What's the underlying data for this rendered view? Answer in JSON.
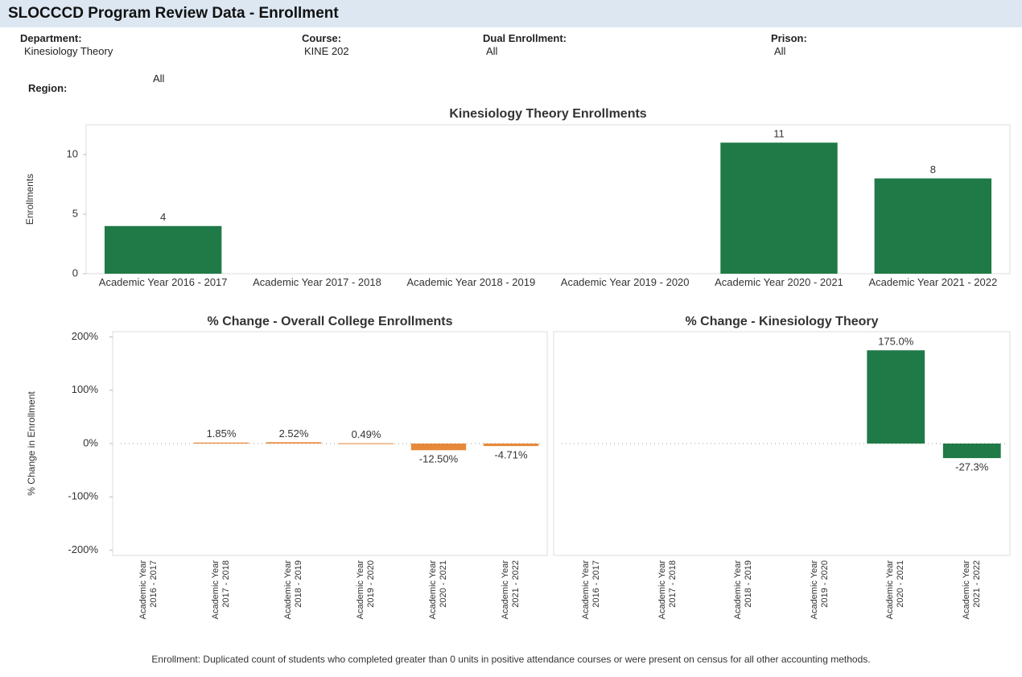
{
  "header": {
    "title": "SLOCCCD Program Review Data - Enrollment"
  },
  "filters": [
    {
      "label": "Department:",
      "value": "Kinesiology Theory"
    },
    {
      "label": "Course:",
      "value": "KINE 202"
    },
    {
      "label": "Dual Enrollment:",
      "value": "All"
    },
    {
      "label": "Prison:",
      "value": "All"
    },
    {
      "label": "Region:",
      "value": "All"
    }
  ],
  "chart_data": [
    {
      "type": "bar",
      "title": "Kinesiology Theory Enrollments",
      "y_label": "Enrollments",
      "categories": [
        "Academic Year 2016 - 2017",
        "Academic Year 2017 - 2018",
        "Academic Year 2018 - 2019",
        "Academic Year 2019 - 2020",
        "Academic Year 2020 - 2021",
        "Academic Year 2021 - 2022"
      ],
      "values": [
        4,
        null,
        null,
        null,
        11,
        8
      ],
      "color": "#1f7a47",
      "ylim": [
        0,
        12.5
      ],
      "yticks": [
        0,
        5,
        10
      ],
      "rotated_labels": false
    },
    {
      "type": "bar",
      "title": "% Change - Overall College Enrollments",
      "y_label": "% Change in Enrollment",
      "categories": [
        "Academic Year 2016 - 2017",
        "Academic Year 2017 - 2018",
        "Academic Year 2018 - 2019",
        "Academic Year 2019 - 2020",
        "Academic Year 2020 - 2021",
        "Academic Year 2021 - 2022"
      ],
      "values": [
        null,
        1.85,
        2.52,
        0.49,
        -12.5,
        -4.71
      ],
      "value_labels": [
        null,
        "1.85%",
        "2.52%",
        "0.49%",
        "-12.50%",
        "-4.71%"
      ],
      "color": "#e8883a",
      "ylim": [
        -210,
        210
      ],
      "yticks": [
        {
          "value": -200,
          "label": "-200%"
        },
        {
          "value": -100,
          "label": "-100%"
        },
        {
          "value": 0,
          "label": "0%"
        },
        {
          "value": 100,
          "label": "100%"
        },
        {
          "value": 200,
          "label": "200%"
        }
      ],
      "rotated_labels": true
    },
    {
      "type": "bar",
      "title": "% Change - Kinesiology Theory",
      "categories": [
        "Academic Year 2016 - 2017",
        "Academic Year 2017 - 2018",
        "Academic Year 2018 - 2019",
        "Academic Year 2019 - 2020",
        "Academic Year 2020 - 2021",
        "Academic Year 2021 - 2022"
      ],
      "values": [
        null,
        null,
        null,
        null,
        175.0,
        -27.3
      ],
      "value_labels": [
        null,
        null,
        null,
        null,
        "175.0%",
        "-27.3%"
      ],
      "color": "#1f7a47",
      "ylim": [
        -210,
        210
      ],
      "rotated_labels": true
    }
  ],
  "footnote": "Enrollment: Duplicated count of students who completed greater than 0 units in positive attendance courses or were present on census for all other accounting methods."
}
